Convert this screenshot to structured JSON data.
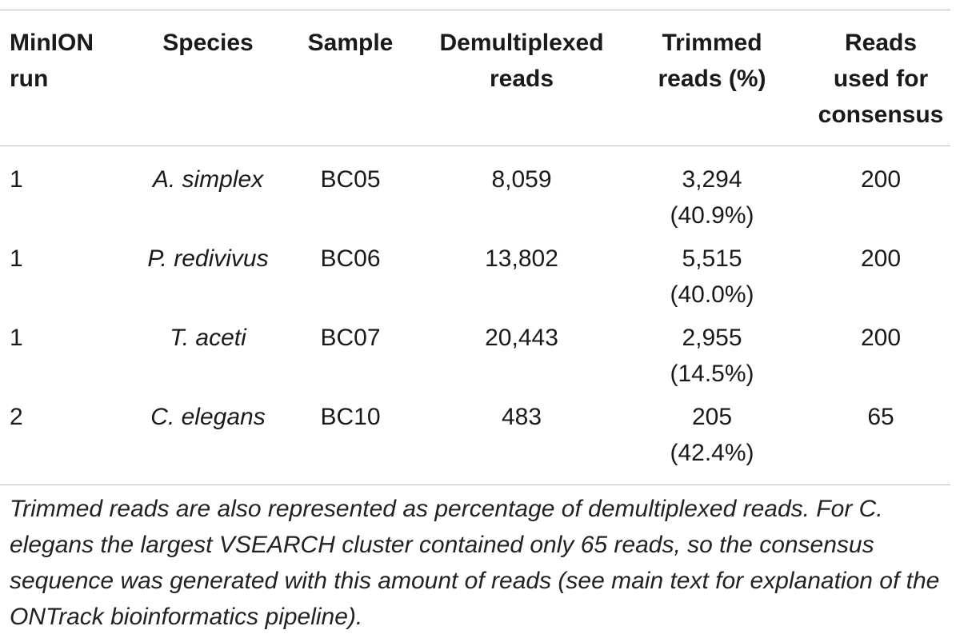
{
  "table": {
    "headers": [
      [
        "MinION",
        "run"
      ],
      [
        "Species"
      ],
      [
        "Sample"
      ],
      [
        "Demultiplexed",
        "reads"
      ],
      [
        "Trimmed",
        "reads (%)"
      ],
      [
        "Reads",
        "used for",
        "consensus"
      ]
    ],
    "rows": [
      {
        "run": "1",
        "species": "A. simplex",
        "sample": "BC05",
        "demux": "8,059",
        "trimmed": "3,294",
        "trimmed_pct": "(40.9%)",
        "consensus": "200"
      },
      {
        "run": "1",
        "species": "P. redivivus",
        "sample": "BC06",
        "demux": "13,802",
        "trimmed": "5,515",
        "trimmed_pct": "(40.0%)",
        "consensus": "200"
      },
      {
        "run": "1",
        "species": "T. aceti",
        "sample": "BC07",
        "demux": "20,443",
        "trimmed": "2,955",
        "trimmed_pct": "(14.5%)",
        "consensus": "200"
      },
      {
        "run": "2",
        "species": "C. elegans",
        "sample": "BC10",
        "demux": "483",
        "trimmed": "205",
        "trimmed_pct": "(42.4%)",
        "consensus": "65"
      }
    ]
  },
  "caption": "Trimmed reads are also represented as percentage of demultiplexed reads. For C. elegans the largest VSEARCH cluster contained only 65 reads, so the consensus sequence was generated with this amount of reads (see main text for explanation of the ONTrack bioinformatics pipeline)."
}
